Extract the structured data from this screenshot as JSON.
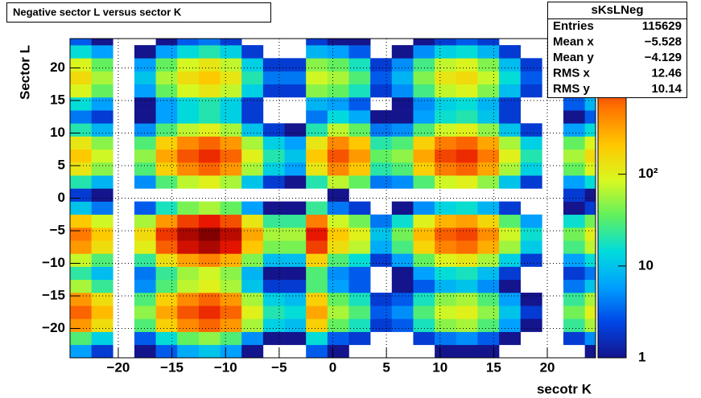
{
  "chart_data": {
    "type": "heatmap",
    "title": "Negative sector L versus sector K",
    "xlabel": "secotr K",
    "ylabel": "Sector L",
    "xlim": [
      -24.5,
      24.5
    ],
    "ylim": [
      -24.5,
      24.5
    ],
    "xticks": [
      {
        "value": -20,
        "label": "−20"
      },
      {
        "value": -15,
        "label": "−15"
      },
      {
        "value": -10,
        "label": "−10"
      },
      {
        "value": -5,
        "label": "−5"
      },
      0,
      5,
      10,
      15,
      20
    ],
    "yticks": [
      {
        "value": -20,
        "label": "−20"
      },
      {
        "value": -15,
        "label": "−15"
      },
      {
        "value": -10,
        "label": "−10"
      },
      {
        "value": -5,
        "label": "−5"
      },
      0,
      5,
      10,
      15,
      20
    ],
    "grid": true,
    "zscale": "log",
    "zlim": [
      1,
      3000
    ],
    "zticks": [
      1,
      10,
      {
        "value": 100,
        "label": "10²"
      }
    ],
    "colormap": [
      "#14148c",
      "#0046e6",
      "#00a0ff",
      "#00dcdc",
      "#60f060",
      "#d8f820",
      "#ffc800",
      "#ff7800",
      "#e61400",
      "#820000"
    ],
    "xbins": [
      -24.5,
      -22.5,
      -20.5,
      -18.5,
      -16.5,
      -14.5,
      -12.5,
      -10.5,
      -8.5,
      -6.5,
      -4.5,
      -2.5,
      -0.5,
      1.5,
      3.5,
      5.5,
      7.5,
      9.5,
      11.5,
      13.5,
      15.5,
      17.5,
      19.5,
      21.5,
      23.5,
      24.5
    ],
    "ybins": [
      -24.5,
      -22.5,
      -20.5,
      -18.5,
      -16.5,
      -14.5,
      -12.5,
      -10.5,
      -8.5,
      -6.5,
      -4.5,
      -2.5,
      -0.5,
      1.5,
      3.5,
      5.5,
      7.5,
      9.5,
      11.5,
      13.5,
      15.5,
      17.5,
      19.5,
      21.5,
      23.5,
      24.5
    ],
    "z": [
      [
        6,
        2,
        0,
        1,
        3,
        7,
        10,
        6,
        1,
        0,
        0,
        3,
        1,
        0,
        0,
        0,
        0,
        1,
        1,
        1,
        0,
        0,
        0,
        0,
        1
      ],
      [
        30,
        12,
        0,
        3,
        15,
        35,
        50,
        30,
        5,
        1,
        1,
        15,
        3,
        2,
        0,
        0,
        2,
        4,
        5,
        3,
        1,
        0,
        0,
        2,
        5
      ],
      [
        360,
        144,
        0,
        30,
        180,
        420,
        600,
        360,
        60,
        12,
        9,
        180,
        36,
        18,
        2,
        3,
        18,
        48,
        60,
        30,
        6,
        1,
        0,
        24,
        60
      ],
      [
        600,
        240,
        0,
        50,
        300,
        700,
        1000,
        600,
        100,
        20,
        15,
        300,
        60,
        30,
        3,
        5,
        30,
        80,
        100,
        50,
        10,
        2,
        0,
        40,
        100
      ],
      [
        360,
        144,
        0,
        30,
        180,
        420,
        600,
        360,
        60,
        12,
        9,
        180,
        36,
        18,
        2,
        3,
        18,
        48,
        60,
        30,
        6,
        1,
        0,
        24,
        60
      ],
      [
        60,
        24,
        0,
        5,
        30,
        70,
        100,
        60,
        10,
        2,
        2,
        30,
        6,
        3,
        0,
        1,
        3,
        8,
        10,
        5,
        1,
        0,
        0,
        4,
        10
      ],
      [
        22,
        9,
        0,
        4,
        24,
        56,
        80,
        48,
        8,
        1,
        1,
        30,
        5,
        3,
        0,
        1,
        6,
        15,
        18,
        9,
        2,
        0,
        0,
        2,
        4
      ],
      [
        75,
        30,
        0,
        23,
        135,
        315,
        450,
        270,
        45,
        9,
        9,
        180,
        30,
        15,
        2,
        6,
        36,
        96,
        120,
        60,
        12,
        2,
        0,
        6,
        15
      ],
      [
        350,
        140,
        0,
        105,
        630,
        1470,
        2100,
        1260,
        210,
        42,
        42,
        840,
        140,
        70,
        7,
        28,
        168,
        448,
        560,
        280,
        56,
        11,
        0,
        28,
        70
      ],
      [
        500,
        200,
        0,
        150,
        900,
        2100,
        3000,
        1800,
        300,
        60,
        60,
        1200,
        200,
        100,
        10,
        40,
        240,
        640,
        800,
        400,
        80,
        16,
        0,
        40,
        100
      ],
      [
        200,
        80,
        0,
        60,
        360,
        840,
        1200,
        720,
        120,
        24,
        24,
        480,
        80,
        40,
        4,
        16,
        96,
        256,
        320,
        160,
        32,
        6,
        0,
        16,
        40
      ],
      [
        10,
        4,
        0,
        3,
        18,
        42,
        60,
        36,
        6,
        1,
        1,
        24,
        4,
        2,
        0,
        1,
        5,
        13,
        16,
        8,
        2,
        0,
        0,
        1,
        2
      ],
      [
        2,
        1,
        0,
        0,
        0,
        0,
        0,
        0,
        0,
        0,
        0,
        0,
        1,
        0,
        0,
        0,
        0,
        0,
        0,
        0,
        0,
        0,
        0,
        2,
        1
      ],
      [
        20,
        8,
        0,
        5,
        30,
        70,
        100,
        60,
        10,
        2,
        1,
        20,
        70,
        35,
        4,
        5,
        30,
        80,
        100,
        50,
        10,
        2,
        0,
        6,
        15
      ],
      [
        120,
        48,
        0,
        30,
        180,
        420,
        600,
        360,
        60,
        12,
        6,
        120,
        420,
        210,
        21,
        30,
        180,
        480,
        600,
        300,
        60,
        12,
        0,
        36,
        90
      ],
      [
        200,
        80,
        0,
        50,
        300,
        700,
        1000,
        600,
        100,
        20,
        10,
        200,
        700,
        350,
        35,
        50,
        300,
        800,
        1000,
        500,
        100,
        20,
        0,
        60,
        150
      ],
      [
        120,
        48,
        0,
        30,
        180,
        420,
        600,
        360,
        60,
        12,
        6,
        120,
        420,
        210,
        21,
        30,
        180,
        480,
        600,
        300,
        60,
        12,
        0,
        36,
        90
      ],
      [
        20,
        8,
        0,
        5,
        30,
        70,
        100,
        60,
        10,
        2,
        1,
        20,
        70,
        35,
        4,
        5,
        30,
        80,
        100,
        50,
        10,
        2,
        0,
        6,
        15
      ],
      [
        4,
        2,
        0,
        1,
        6,
        14,
        20,
        12,
        2,
        0,
        0,
        4,
        14,
        7,
        1,
        1,
        6,
        16,
        20,
        10,
        2,
        0,
        0,
        1,
        3
      ],
      [
        15,
        6,
        0,
        1,
        6,
        14,
        20,
        12,
        2,
        0,
        0,
        8,
        6,
        3,
        0,
        1,
        5,
        12,
        15,
        8,
        2,
        0,
        0,
        3,
        8
      ],
      [
        90,
        36,
        0,
        6,
        36,
        84,
        120,
        72,
        12,
        2,
        2,
        48,
        36,
        18,
        2,
        5,
        27,
        72,
        90,
        45,
        9,
        2,
        0,
        19,
        48
      ],
      [
        150,
        60,
        0,
        10,
        60,
        140,
        200,
        120,
        20,
        4,
        4,
        80,
        60,
        30,
        3,
        8,
        45,
        120,
        150,
        75,
        15,
        3,
        0,
        32,
        80
      ],
      [
        90,
        36,
        0,
        6,
        36,
        84,
        120,
        72,
        12,
        2,
        2,
        48,
        36,
        18,
        2,
        5,
        27,
        72,
        90,
        45,
        9,
        2,
        0,
        19,
        48
      ],
      [
        15,
        6,
        0,
        1,
        6,
        14,
        20,
        12,
        2,
        0,
        0,
        8,
        6,
        3,
        0,
        1,
        5,
        12,
        15,
        8,
        2,
        0,
        0,
        3,
        8
      ],
      [
        3,
        1,
        0,
        0,
        1,
        3,
        4,
        2,
        0,
        0,
        0,
        2,
        1,
        1,
        0,
        0,
        1,
        2,
        3,
        2,
        0,
        0,
        0,
        1,
        2
      ]
    ],
    "stats": {
      "title": "sKsLNeg",
      "rows": [
        [
          "Entries",
          "115629"
        ],
        [
          "Mean x",
          "−5.528"
        ],
        [
          "Mean y",
          "−4.129"
        ],
        [
          "RMS x",
          "12.46"
        ],
        [
          "RMS y",
          "10.14"
        ]
      ]
    }
  }
}
